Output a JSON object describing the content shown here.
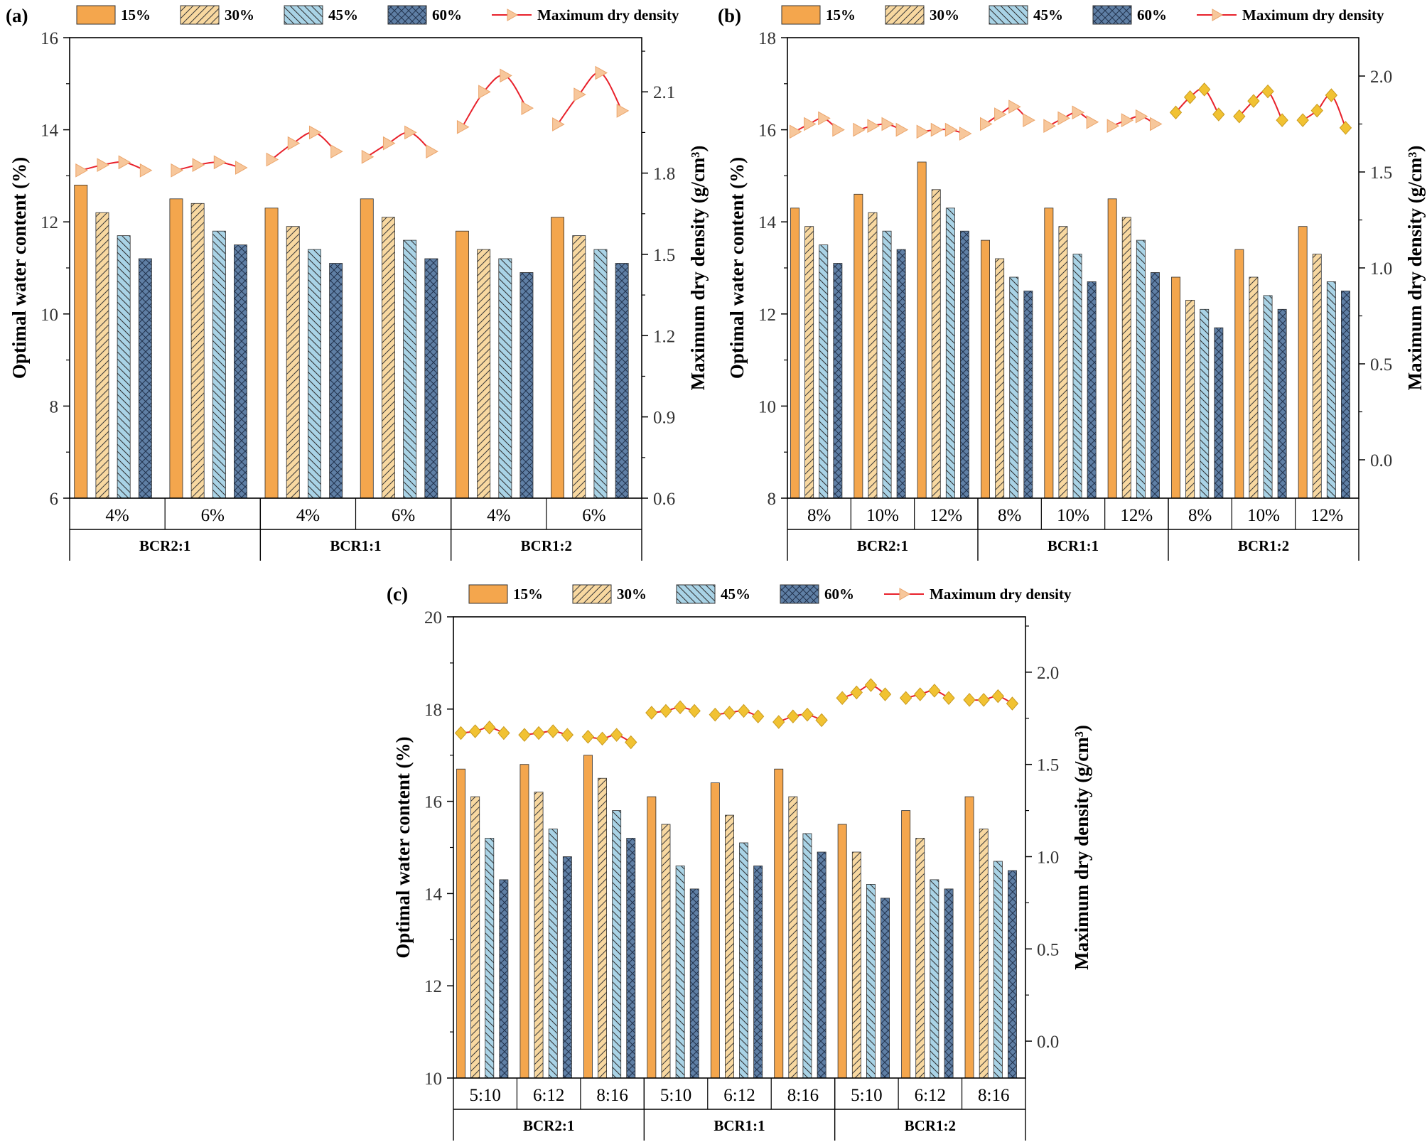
{
  "colors": {
    "s15": "#f4a64d",
    "s30": "#f8d8a0",
    "s45": "#a9d3e6",
    "s60": "#5f7fa5",
    "line": "#e8212b",
    "marker_light": "#f7c79b",
    "marker_gold": "#f1c232"
  },
  "chart_data": [
    {
      "type": "bar",
      "panel_label": "(a)",
      "ylabel": "Optimal water content (%)",
      "y2label": "Maximum dry density (g/cm³)",
      "ylim": [
        6,
        16
      ],
      "yticks": [
        "6",
        "8",
        "10",
        "12",
        "14",
        "16"
      ],
      "y2lim": [
        0.6,
        2.3
      ],
      "y2ticks": [
        "0.6",
        "0.9",
        "1.2",
        "1.5",
        "1.8",
        "2.1"
      ],
      "legend": [
        "15%",
        "30%",
        "45%",
        "60%",
        "Maximum dry density"
      ],
      "categories": [
        "4%",
        "6%",
        "4%",
        "6%",
        "4%",
        "6%"
      ],
      "groups": [
        {
          "label": "BCR2:1",
          "span": 2
        },
        {
          "label": "BCR1:1",
          "span": 2
        },
        {
          "label": "BCR1:2",
          "span": 2
        }
      ],
      "series": [
        {
          "name": "15%",
          "values": [
            12.8,
            12.5,
            12.3,
            12.5,
            11.8,
            12.1
          ]
        },
        {
          "name": "30%",
          "values": [
            12.2,
            12.4,
            11.9,
            12.1,
            11.4,
            11.7
          ]
        },
        {
          "name": "45%",
          "values": [
            11.7,
            11.8,
            11.4,
            11.6,
            11.2,
            11.4
          ]
        },
        {
          "name": "60%",
          "values": [
            11.2,
            11.5,
            11.1,
            11.2,
            10.9,
            11.1
          ]
        }
      ],
      "density": [
        [
          1.81,
          1.83,
          1.84,
          1.81
        ],
        [
          1.81,
          1.83,
          1.84,
          1.82
        ],
        [
          1.85,
          1.91,
          1.95,
          1.88
        ],
        [
          1.86,
          1.91,
          1.95,
          1.88
        ],
        [
          1.97,
          2.1,
          2.16,
          2.04
        ],
        [
          1.98,
          2.09,
          2.17,
          2.03
        ]
      ],
      "marker_style": "light"
    },
    {
      "type": "bar",
      "panel_label": "(b)",
      "ylabel": "Optimal water content (%)",
      "y2label": "Maximum dry density (g/cm³)",
      "ylim": [
        8,
        18
      ],
      "yticks": [
        "8",
        "10",
        "12",
        "14",
        "16",
        "18"
      ],
      "y2lim": [
        -0.2,
        2.2
      ],
      "y2ticks": [
        "0.0",
        "0.5",
        "1.0",
        "1.5",
        "2.0"
      ],
      "legend": [
        "15%",
        "30%",
        "45%",
        "60%",
        "Maximum dry density"
      ],
      "categories": [
        "8%",
        "10%",
        "12%",
        "8%",
        "10%",
        "12%",
        "8%",
        "10%",
        "12%"
      ],
      "groups": [
        {
          "label": "BCR2:1",
          "span": 3
        },
        {
          "label": "BCR1:1",
          "span": 3
        },
        {
          "label": "BCR1:2",
          "span": 3
        }
      ],
      "series": [
        {
          "name": "15%",
          "values": [
            14.3,
            14.6,
            15.3,
            13.6,
            14.3,
            14.5,
            12.8,
            13.4,
            13.9
          ]
        },
        {
          "name": "30%",
          "values": [
            13.9,
            14.2,
            14.7,
            13.2,
            13.9,
            14.1,
            12.3,
            12.8,
            13.3
          ]
        },
        {
          "name": "45%",
          "values": [
            13.5,
            13.8,
            14.3,
            12.8,
            13.3,
            13.6,
            12.1,
            12.4,
            12.7
          ]
        },
        {
          "name": "60%",
          "values": [
            13.1,
            13.4,
            13.8,
            12.5,
            12.7,
            12.9,
            11.7,
            12.1,
            12.5
          ]
        }
      ],
      "density": [
        [
          1.71,
          1.75,
          1.78,
          1.72
        ],
        [
          1.72,
          1.74,
          1.75,
          1.72
        ],
        [
          1.71,
          1.72,
          1.72,
          1.7
        ],
        [
          1.75,
          1.8,
          1.84,
          1.77
        ],
        [
          1.74,
          1.78,
          1.81,
          1.76
        ],
        [
          1.74,
          1.77,
          1.79,
          1.75
        ],
        [
          1.81,
          1.89,
          1.93,
          1.8
        ],
        [
          1.79,
          1.87,
          1.92,
          1.77
        ],
        [
          1.77,
          1.82,
          1.9,
          1.73
        ]
      ],
      "marker_style": "mixed"
    },
    {
      "type": "bar",
      "panel_label": "(c)",
      "ylabel": "Optimal water content (%)",
      "y2label": "Maximum dry density (g/cm³)",
      "ylim": [
        10,
        20
      ],
      "yticks": [
        "10",
        "12",
        "14",
        "16",
        "18",
        "20"
      ],
      "y2lim": [
        -0.2,
        2.3
      ],
      "y2ticks": [
        "0.0",
        "0.5",
        "1.0",
        "1.5",
        "2.0"
      ],
      "legend": [
        "15%",
        "30%",
        "45%",
        "60%",
        "Maximum dry density"
      ],
      "categories": [
        "5:10",
        "6:12",
        "8:16",
        "5:10",
        "6:12",
        "8:16",
        "5:10",
        "6:12",
        "8:16"
      ],
      "groups": [
        {
          "label": "BCR2:1",
          "span": 3
        },
        {
          "label": "BCR1:1",
          "span": 3
        },
        {
          "label": "BCR1:2",
          "span": 3
        }
      ],
      "series": [
        {
          "name": "15%",
          "values": [
            16.7,
            16.8,
            17.0,
            16.1,
            16.4,
            16.7,
            15.5,
            15.8,
            16.1
          ]
        },
        {
          "name": "30%",
          "values": [
            16.1,
            16.2,
            16.5,
            15.5,
            15.7,
            16.1,
            14.9,
            15.2,
            15.4
          ]
        },
        {
          "name": "45%",
          "values": [
            15.2,
            15.4,
            15.8,
            14.6,
            15.1,
            15.3,
            14.2,
            14.3,
            14.7
          ]
        },
        {
          "name": "60%",
          "values": [
            14.3,
            14.8,
            15.2,
            14.1,
            14.6,
            14.9,
            13.9,
            14.1,
            14.5
          ]
        }
      ],
      "density": [
        [
          1.67,
          1.68,
          1.7,
          1.67
        ],
        [
          1.66,
          1.67,
          1.68,
          1.66
        ],
        [
          1.65,
          1.64,
          1.66,
          1.62
        ],
        [
          1.78,
          1.79,
          1.81,
          1.79
        ],
        [
          1.77,
          1.78,
          1.79,
          1.76
        ],
        [
          1.73,
          1.76,
          1.77,
          1.74
        ],
        [
          1.86,
          1.89,
          1.93,
          1.88
        ],
        [
          1.86,
          1.88,
          1.9,
          1.86
        ],
        [
          1.85,
          1.85,
          1.87,
          1.83
        ]
      ],
      "marker_style": "gold"
    }
  ]
}
